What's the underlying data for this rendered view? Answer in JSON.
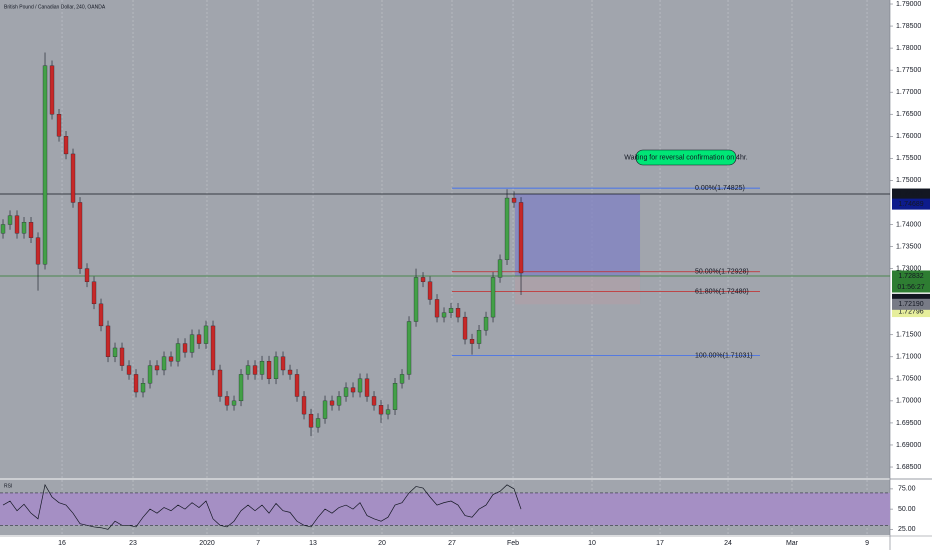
{
  "chart_data": {
    "type": "candlestick",
    "title": "British Pound / Canadian Dollar, 240, OANDA",
    "colors": {
      "up": "#43a047",
      "down": "#c62828",
      "background": "#a1a5ad",
      "grid": "#c4c7cd"
    },
    "x": [
      0,
      1,
      2,
      3,
      4,
      5,
      6,
      7,
      8,
      9,
      10,
      11,
      12,
      13,
      14,
      15,
      16,
      17,
      18,
      19,
      20,
      21,
      22,
      23,
      24,
      25,
      26,
      27,
      28,
      29,
      30,
      31,
      32,
      33,
      34,
      35,
      36,
      37,
      38,
      39,
      40,
      41,
      42,
      43,
      44,
      45,
      46,
      47,
      48,
      49,
      50,
      51,
      52,
      53,
      54,
      55,
      56,
      57,
      58,
      59,
      60,
      61,
      62,
      63,
      64,
      65,
      66,
      67,
      68,
      69,
      70,
      71,
      72,
      73,
      74
    ],
    "ohlc": [
      [
        1.738,
        1.7412,
        1.7368,
        1.74
      ],
      [
        1.74,
        1.7432,
        1.7388,
        1.742
      ],
      [
        1.742,
        1.7432,
        1.7368,
        1.738
      ],
      [
        1.738,
        1.7417,
        1.7368,
        1.7405
      ],
      [
        1.7405,
        1.7417,
        1.7358,
        1.737
      ],
      [
        1.737,
        1.7382,
        1.725,
        1.731
      ],
      [
        1.731,
        1.779,
        1.7298,
        1.776
      ],
      [
        1.776,
        1.7772,
        1.7638,
        1.765
      ],
      [
        1.765,
        1.7662,
        1.7588,
        1.76
      ],
      [
        1.76,
        1.7612,
        1.7548,
        1.756
      ],
      [
        1.756,
        1.7572,
        1.7438,
        1.745
      ],
      [
        1.745,
        1.7462,
        1.7288,
        1.73
      ],
      [
        1.73,
        1.7312,
        1.7258,
        1.727
      ],
      [
        1.727,
        1.7282,
        1.7208,
        1.722
      ],
      [
        1.722,
        1.7232,
        1.7158,
        1.717
      ],
      [
        1.717,
        1.7182,
        1.7088,
        1.71
      ],
      [
        1.71,
        1.7132,
        1.7088,
        1.712
      ],
      [
        1.712,
        1.7132,
        1.7068,
        1.708
      ],
      [
        1.708,
        1.7092,
        1.7048,
        1.706
      ],
      [
        1.706,
        1.7072,
        1.7008,
        1.702
      ],
      [
        1.702,
        1.7052,
        1.7008,
        1.704
      ],
      [
        1.704,
        1.7092,
        1.7028,
        1.708
      ],
      [
        1.708,
        1.7092,
        1.7058,
        1.707
      ],
      [
        1.707,
        1.7112,
        1.7058,
        1.71
      ],
      [
        1.71,
        1.7112,
        1.7078,
        1.709
      ],
      [
        1.709,
        1.7142,
        1.7078,
        1.713
      ],
      [
        1.713,
        1.7142,
        1.7098,
        1.711
      ],
      [
        1.711,
        1.7162,
        1.7098,
        1.715
      ],
      [
        1.715,
        1.7162,
        1.7118,
        1.713
      ],
      [
        1.713,
        1.7182,
        1.7118,
        1.717
      ],
      [
        1.717,
        1.7182,
        1.7058,
        1.707
      ],
      [
        1.707,
        1.7082,
        1.6998,
        1.701
      ],
      [
        1.701,
        1.7022,
        1.6978,
        1.699
      ],
      [
        1.699,
        1.7012,
        1.6978,
        1.7
      ],
      [
        1.7,
        1.7072,
        1.6988,
        1.706
      ],
      [
        1.706,
        1.7092,
        1.7048,
        1.708
      ],
      [
        1.708,
        1.7092,
        1.7048,
        1.706
      ],
      [
        1.706,
        1.7102,
        1.7048,
        1.709
      ],
      [
        1.709,
        1.7102,
        1.7038,
        1.705
      ],
      [
        1.705,
        1.7112,
        1.7038,
        1.71
      ],
      [
        1.71,
        1.7112,
        1.7058,
        1.707
      ],
      [
        1.707,
        1.7082,
        1.7048,
        1.706
      ],
      [
        1.706,
        1.7072,
        1.6998,
        1.701
      ],
      [
        1.701,
        1.7022,
        1.6958,
        1.697
      ],
      [
        1.697,
        1.6982,
        1.692,
        1.694
      ],
      [
        1.694,
        1.6972,
        1.6928,
        1.696
      ],
      [
        1.696,
        1.7012,
        1.6948,
        1.7
      ],
      [
        1.7,
        1.7012,
        1.6978,
        1.699
      ],
      [
        1.699,
        1.7022,
        1.6978,
        1.701
      ],
      [
        1.701,
        1.7042,
        1.6998,
        1.703
      ],
      [
        1.703,
        1.7042,
        1.7008,
        1.702
      ],
      [
        1.702,
        1.7062,
        1.7008,
        1.705
      ],
      [
        1.705,
        1.7062,
        1.6998,
        1.701
      ],
      [
        1.701,
        1.7022,
        1.6978,
        1.699
      ],
      [
        1.699,
        1.7002,
        1.695,
        1.697
      ],
      [
        1.697,
        1.6992,
        1.6958,
        1.698
      ],
      [
        1.698,
        1.7052,
        1.6968,
        1.704
      ],
      [
        1.704,
        1.7072,
        1.7028,
        1.706
      ],
      [
        1.706,
        1.7192,
        1.7048,
        1.718
      ],
      [
        1.718,
        1.73,
        1.7168,
        1.728
      ],
      [
        1.728,
        1.7292,
        1.7258,
        1.727
      ],
      [
        1.727,
        1.7282,
        1.7218,
        1.723
      ],
      [
        1.723,
        1.7242,
        1.7178,
        1.719
      ],
      [
        1.719,
        1.7212,
        1.7178,
        1.72
      ],
      [
        1.72,
        1.7222,
        1.7188,
        1.721
      ],
      [
        1.721,
        1.7222,
        1.7178,
        1.719
      ],
      [
        1.719,
        1.7202,
        1.7128,
        1.714
      ],
      [
        1.714,
        1.7152,
        1.7105,
        1.713
      ],
      [
        1.713,
        1.7172,
        1.7118,
        1.716
      ],
      [
        1.716,
        1.7202,
        1.7148,
        1.719
      ],
      [
        1.719,
        1.7292,
        1.7178,
        1.728
      ],
      [
        1.728,
        1.7332,
        1.7268,
        1.732
      ],
      [
        1.732,
        1.748,
        1.7308,
        1.746
      ],
      [
        1.746,
        1.7475,
        1.7438,
        1.745
      ],
      [
        1.745,
        1.7462,
        1.724,
        1.729
      ]
    ],
    "xlim": [
      -0.43,
      126.71
    ],
    "xticks": [
      {
        "value": 8.43,
        "label": "16"
      },
      {
        "value": 18.57,
        "label": "23"
      },
      {
        "value": 29.14,
        "label": "2020"
      },
      {
        "value": 36.43,
        "label": "7"
      },
      {
        "value": 44.29,
        "label": "13"
      },
      {
        "value": 54.14,
        "label": "20"
      },
      {
        "value": 64.14,
        "label": "27"
      },
      {
        "value": 72.86,
        "label": "Feb"
      },
      {
        "value": 84.14,
        "label": "10"
      },
      {
        "value": 93.86,
        "label": "17"
      },
      {
        "value": 103.57,
        "label": "24"
      },
      {
        "value": 112.71,
        "label": "Mar"
      },
      {
        "value": 123.43,
        "label": "9"
      }
    ],
    "ylim": [
      1.68251,
      1.79091
    ],
    "yticks": [
      {
        "value": 1.685,
        "label": "1.68500"
      },
      {
        "value": 1.69,
        "label": "1.69000"
      },
      {
        "value": 1.695,
        "label": "1.69500"
      },
      {
        "value": 1.7,
        "label": "1.70000"
      },
      {
        "value": 1.705,
        "label": "1.70500"
      },
      {
        "value": 1.71,
        "label": "1.71000"
      },
      {
        "value": 1.715,
        "label": "1.71500"
      },
      {
        "value": 1.73,
        "label": "1.73000"
      },
      {
        "value": 1.735,
        "label": "1.73500"
      },
      {
        "value": 1.74,
        "label": "1.74000"
      },
      {
        "value": 1.75,
        "label": "1.75000"
      },
      {
        "value": 1.755,
        "label": "1.75500"
      },
      {
        "value": 1.76,
        "label": "1.76000"
      },
      {
        "value": 1.765,
        "label": "1.76500"
      },
      {
        "value": 1.77,
        "label": "1.77000"
      },
      {
        "value": 1.775,
        "label": "1.77500"
      },
      {
        "value": 1.78,
        "label": "1.78000"
      },
      {
        "value": 1.785,
        "label": "1.78500"
      },
      {
        "value": 1.79,
        "label": "1.79000"
      }
    ],
    "hlines": [
      {
        "value": 1.74691,
        "color": "#131722"
      },
      {
        "value": 1.72832,
        "color": "#2e7d32"
      }
    ],
    "price_labels": [
      {
        "value": 1.74691,
        "label": "1.74691",
        "color": "#131722",
        "text_color": "#ffffff"
      },
      {
        "value": 1.74689,
        "label": "1.74689",
        "color": "#0d1b8c",
        "text_color": "#ffffff"
      },
      {
        "value": 1.72832,
        "label": "1.72832",
        "color": "#2e7d32",
        "text_color": "#ffffff"
      },
      {
        "value": 1.72801,
        "label": "1.72801",
        "color": "#131722",
        "text_color": "#ffffff"
      },
      {
        "value": 1.72796,
        "label": "1.72796",
        "color": "#e6ee9c",
        "text_color": "#131722"
      },
      {
        "value": 1.7219,
        "label": "1.72190",
        "color": "#787b86",
        "text_color": "#ffffff"
      }
    ],
    "countdown": "01:56:27",
    "fib": {
      "x": [
        64.14,
        108.14
      ],
      "levels": [
        {
          "value": 1.74825,
          "label": "0.00%(1.74825)",
          "color": "#2962ff"
        },
        {
          "value": 1.72928,
          "label": "50.00%(1.72928)",
          "color": "#c62828"
        },
        {
          "value": 1.7248,
          "label": "61.80%(1.72480)",
          "color": "#c62828"
        },
        {
          "value": 1.71031,
          "label": "100.00%(1.71031)",
          "color": "#2962ff"
        }
      ]
    },
    "position": {
      "x": [
        73.14,
        91.0
      ],
      "entry": 1.72832,
      "target": 1.74691,
      "stop": 1.7219
    },
    "annotation": "Waiting for reversal confirmation on 4hr.",
    "rsi": {
      "label": "RSI",
      "color": "#131722",
      "band_color": "#a58fc4",
      "values": [
        55,
        60,
        48,
        56,
        45,
        38,
        80,
        65,
        58,
        55,
        45,
        32,
        30,
        28,
        27,
        25,
        35,
        30,
        30,
        28,
        40,
        50,
        45,
        52,
        48,
        55,
        50,
        58,
        52,
        60,
        38,
        30,
        28,
        35,
        48,
        55,
        48,
        55,
        45,
        57,
        48,
        46,
        35,
        30,
        28,
        40,
        50,
        45,
        52,
        55,
        50,
        58,
        42,
        38,
        35,
        40,
        55,
        58,
        70,
        78,
        76,
        65,
        55,
        58,
        60,
        55,
        42,
        40,
        50,
        55,
        68,
        72,
        80,
        75,
        50
      ],
      "ylim": [
        18,
        86
      ],
      "yticks": [
        {
          "value": 25,
          "label": "25.00"
        },
        {
          "value": 50,
          "label": "50.00"
        },
        {
          "value": 75,
          "label": "75.00"
        }
      ],
      "bands": [
        70,
        30
      ]
    }
  }
}
